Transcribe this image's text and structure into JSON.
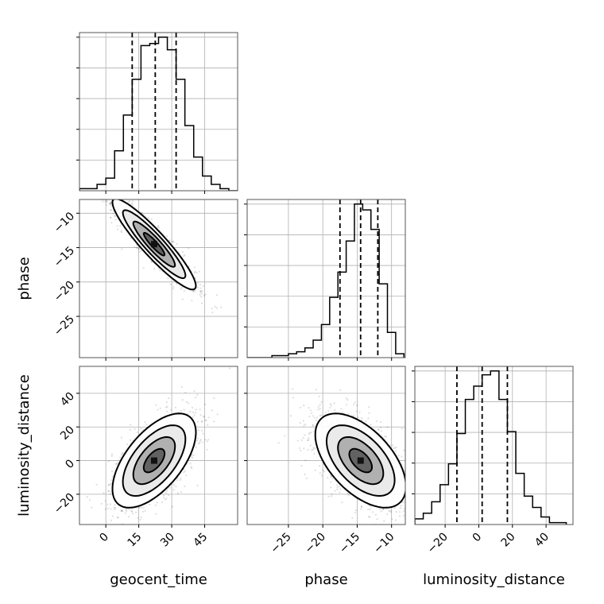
{
  "chart_data": {
    "type": "corner",
    "parameters": [
      {
        "name": "geocent_time",
        "label": "geocent_time",
        "range": [
          -12,
          60
        ],
        "ticks": [
          0,
          15,
          30,
          45
        ],
        "tick_labels": [
          "0",
          "15",
          "30",
          "45"
        ],
        "quantiles": [
          12,
          22.5,
          32
        ]
      },
      {
        "name": "phase",
        "label": "phase",
        "range": [
          -31,
          -8
        ],
        "ticks": [
          -25,
          -20,
          -15,
          -10
        ],
        "tick_labels": [
          "−25",
          "−20",
          "−15",
          "−10"
        ],
        "quantiles": [
          -17.5,
          -14.5,
          -12
        ]
      },
      {
        "name": "luminosity_distance",
        "label": "luminosity_distance",
        "range": [
          -38,
          56
        ],
        "ticks": [
          -20,
          0,
          20,
          40
        ],
        "tick_labels": [
          "−20",
          "0",
          "20",
          "40"
        ],
        "quantiles": [
          -13,
          2,
          17
        ]
      }
    ],
    "marginals": [
      {
        "parameter": "geocent_time",
        "bin_edges": [
          -12,
          -8,
          -4,
          0,
          4,
          8,
          12,
          16,
          20,
          24,
          28,
          32,
          36,
          40,
          44,
          48,
          52,
          56,
          60
        ],
        "counts": [
          1,
          1,
          3,
          6,
          19,
          36,
          53,
          69,
          70,
          73,
          67,
          53,
          31,
          16,
          7,
          3,
          1,
          0
        ]
      },
      {
        "parameter": "phase",
        "bin_edges": [
          -31,
          -29.8,
          -28.6,
          -27.4,
          -26.2,
          -25,
          -23.8,
          -22.6,
          -21.4,
          -20.2,
          -19,
          -17.8,
          -16.6,
          -15.4,
          -14.2,
          -13,
          -11.8,
          -10.6,
          -9.4,
          -8.2
        ],
        "counts": [
          0,
          0,
          0,
          1,
          1,
          2,
          3,
          5,
          9,
          17,
          31,
          44,
          60,
          79,
          76,
          66,
          38,
          13,
          2
        ]
      },
      {
        "parameter": "luminosity_distance",
        "bin_edges": [
          -38,
          -33,
          -28,
          -23,
          -18,
          -13,
          -8,
          -3,
          2,
          7,
          12,
          17,
          22,
          27,
          32,
          37,
          42,
          47,
          52
        ],
        "counts": [
          3,
          6,
          12,
          21,
          32,
          48,
          66,
          73,
          79,
          81,
          66,
          49,
          27,
          15,
          9,
          4,
          1,
          1
        ]
      }
    ],
    "joint": [
      {
        "x": "geocent_time",
        "y": "phase",
        "correlation": -0.92,
        "center": [
          22,
          -14.5
        ],
        "sigma": [
          9.5,
          3.3
        ]
      },
      {
        "x": "geocent_time",
        "y": "luminosity_distance",
        "correlation": 0.6,
        "center": [
          22,
          0
        ],
        "sigma": [
          9.5,
          14
        ]
      },
      {
        "x": "phase",
        "y": "luminosity_distance",
        "correlation": -0.55,
        "center": [
          -14.5,
          0
        ],
        "sigma": [
          3.3,
          14
        ]
      }
    ],
    "contour_levels_sigma": [
      0.5,
      1.0,
      1.5,
      2.0
    ],
    "grid": true
  }
}
